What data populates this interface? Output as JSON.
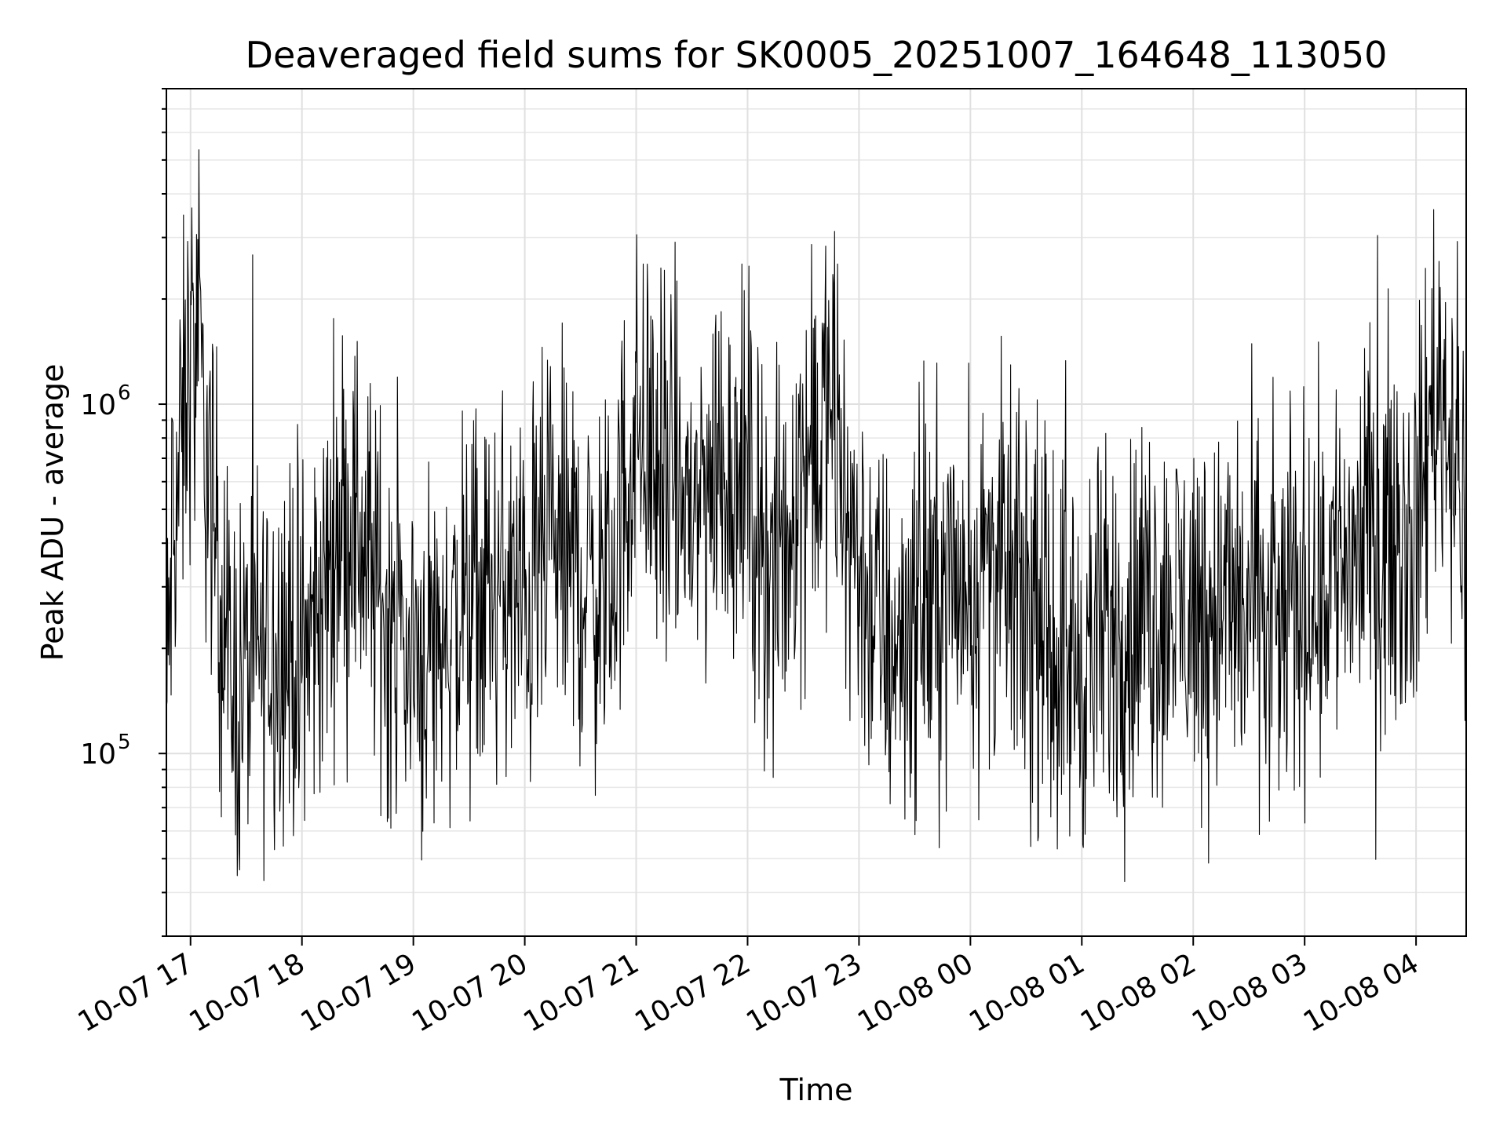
{
  "chart_data": {
    "type": "line",
    "title": "Deaveraged field sums for SK0005_20251007_164648_113050",
    "xlabel": "Time",
    "ylabel": "Peak ADU - average",
    "yscale": "log",
    "ylim": [
      30000,
      8000000
    ],
    "xlim": [
      "2025-10-07 16:47",
      "2025-10-08 04:27"
    ],
    "grid": true,
    "x_tick_labels": [
      "10-07 17",
      "10-07 18",
      "10-07 19",
      "10-07 20",
      "10-07 21",
      "10-07 22",
      "10-07 23",
      "10-08 00",
      "10-08 01",
      "10-08 02",
      "10-08 03",
      "10-08 04"
    ],
    "y_tick_labels": [
      {
        "base": "10",
        "exp": "5",
        "value": 100000
      },
      {
        "base": "10",
        "exp": "6",
        "value": 1000000
      }
    ],
    "series": [
      {
        "color": "#000000",
        "x": [
          "2025-10-07 16:47",
          "2025-10-07 16:50",
          "2025-10-07 16:55",
          "2025-10-07 17:00",
          "2025-10-07 17:05",
          "2025-10-07 17:10",
          "2025-10-07 17:15",
          "2025-10-07 17:20",
          "2025-10-07 17:25",
          "2025-10-07 17:30",
          "2025-10-07 17:40",
          "2025-10-07 17:50",
          "2025-10-07 18:00",
          "2025-10-07 18:10",
          "2025-10-07 18:20",
          "2025-10-07 18:30",
          "2025-10-07 18:40",
          "2025-10-07 18:50",
          "2025-10-07 19:00",
          "2025-10-07 19:15",
          "2025-10-07 19:30",
          "2025-10-07 19:45",
          "2025-10-07 20:00",
          "2025-10-07 20:15",
          "2025-10-07 20:30",
          "2025-10-07 20:45",
          "2025-10-07 21:00",
          "2025-10-07 21:15",
          "2025-10-07 21:30",
          "2025-10-07 21:45",
          "2025-10-07 22:00",
          "2025-10-07 22:15",
          "2025-10-07 22:30",
          "2025-10-07 22:45",
          "2025-10-07 23:00",
          "2025-10-07 23:15",
          "2025-10-07 23:30",
          "2025-10-07 23:45",
          "2025-10-08 00:00",
          "2025-10-08 00:15",
          "2025-10-08 00:30",
          "2025-10-08 00:45",
          "2025-10-08 01:00",
          "2025-10-08 01:15",
          "2025-10-08 01:30",
          "2025-10-08 01:45",
          "2025-10-08 02:00",
          "2025-10-08 02:15",
          "2025-10-08 02:30",
          "2025-10-08 02:45",
          "2025-10-08 03:00",
          "2025-10-08 03:15",
          "2025-10-08 03:30",
          "2025-10-08 03:45",
          "2025-10-08 04:00",
          "2025-10-08 04:10",
          "2025-10-08 04:20",
          "2025-10-08 04:27"
        ],
        "y": [
          120000,
          400000,
          700000,
          1500000,
          1200000,
          600000,
          350000,
          180000,
          150000,
          170000,
          200000,
          220000,
          180000,
          250000,
          500000,
          450000,
          300000,
          230000,
          180000,
          220000,
          250000,
          300000,
          260000,
          400000,
          320000,
          280000,
          900000,
          600000,
          500000,
          700000,
          600000,
          300000,
          700000,
          900000,
          350000,
          200000,
          250000,
          300000,
          320000,
          350000,
          250000,
          200000,
          180000,
          220000,
          250000,
          270000,
          260000,
          270000,
          250000,
          230000,
          280000,
          350000,
          400000,
          450000,
          420000,
          1200000,
          800000,
          450000
        ]
      }
    ]
  }
}
